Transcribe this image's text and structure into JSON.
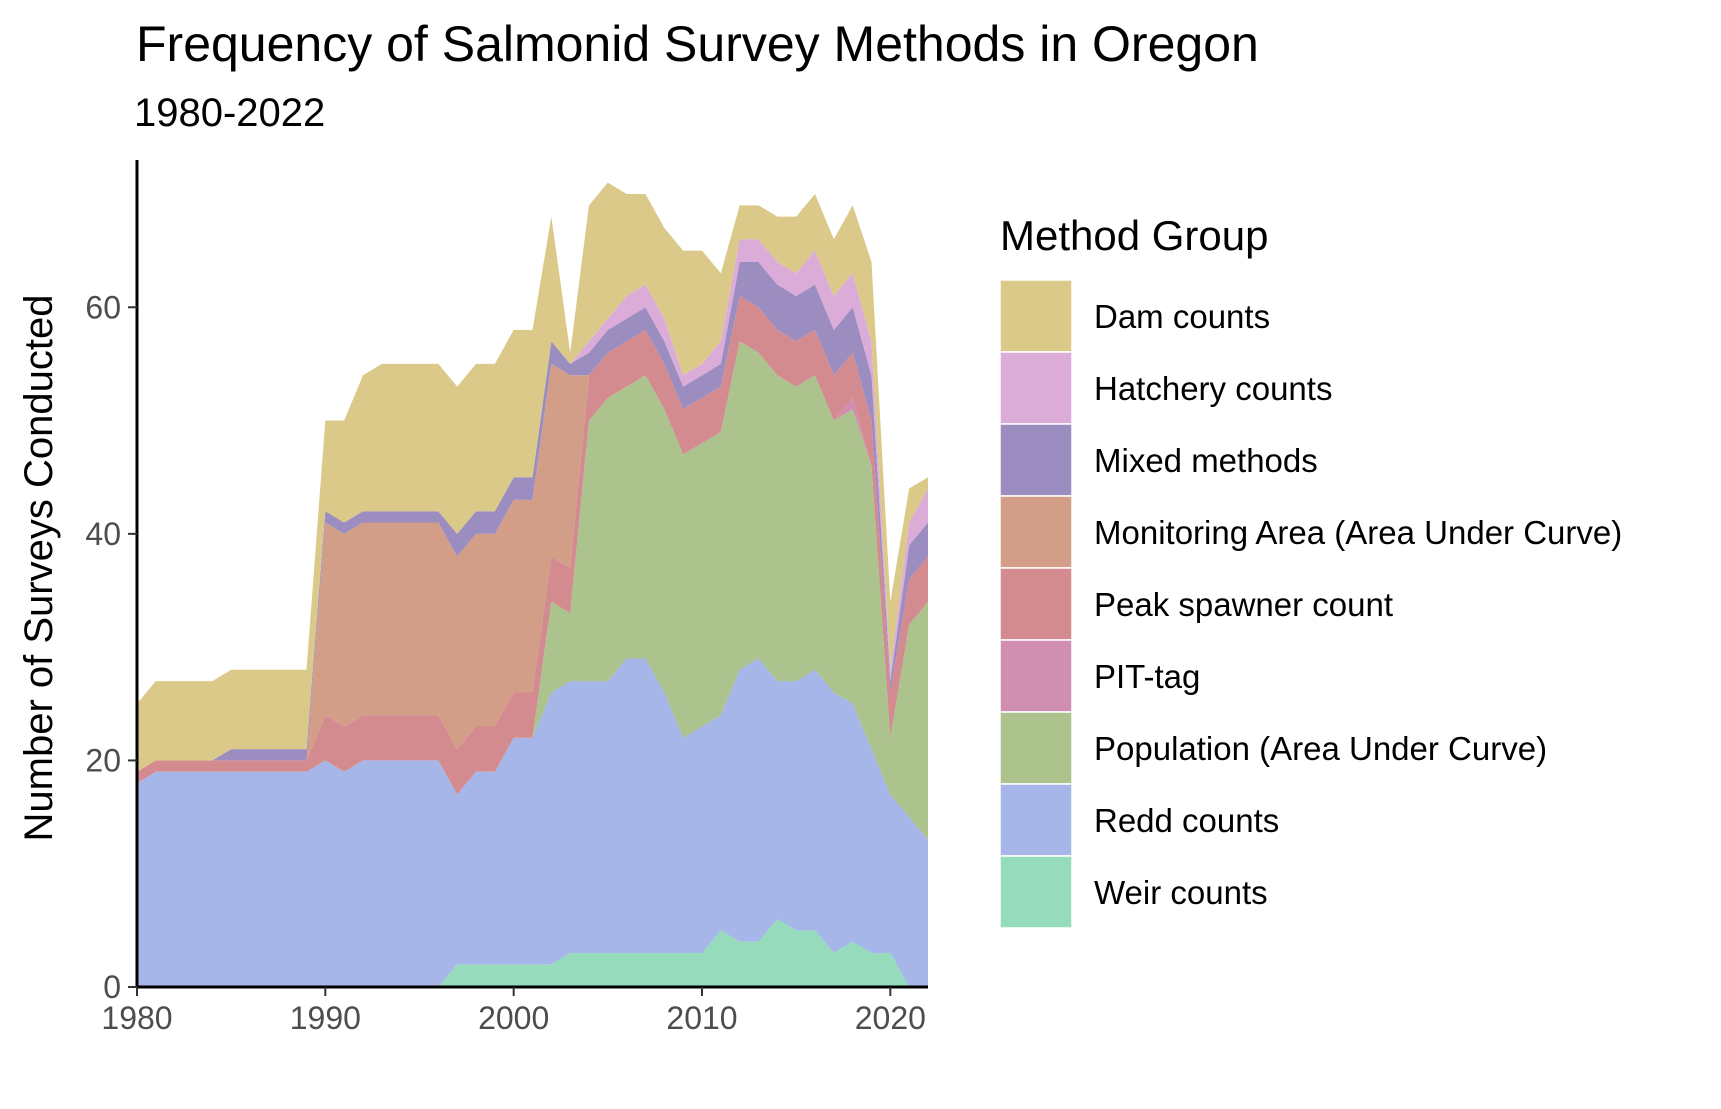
{
  "chart_data": {
    "type": "area",
    "stacked": true,
    "title": "Frequency of Salmonid Survey Methods in Oregon",
    "subtitle": "1980-2022",
    "xlabel": "",
    "ylabel": "Number of Surveys Conducted",
    "xlim": [
      1980,
      2022
    ],
    "ylim": [
      0,
      73
    ],
    "x_ticks": [
      1980,
      1990,
      2000,
      2010,
      2020
    ],
    "y_ticks": [
      0,
      20,
      40,
      60
    ],
    "grid": false,
    "legend": {
      "title": "Method Group",
      "position": "right"
    },
    "x": [
      1980,
      1981,
      1982,
      1983,
      1984,
      1985,
      1986,
      1987,
      1988,
      1989,
      1990,
      1991,
      1992,
      1993,
      1994,
      1995,
      1996,
      1997,
      1998,
      1999,
      2000,
      2001,
      2002,
      2003,
      2004,
      2005,
      2006,
      2007,
      2008,
      2009,
      2010,
      2011,
      2012,
      2013,
      2014,
      2015,
      2016,
      2017,
      2018,
      2019,
      2020,
      2021,
      2022
    ],
    "series": [
      {
        "name": "Weir counts",
        "color": "#96dcbc",
        "values": [
          0,
          0,
          0,
          0,
          0,
          0,
          0,
          0,
          0,
          0,
          0,
          0,
          0,
          0,
          0,
          0,
          0,
          2,
          2,
          2,
          2,
          2,
          2,
          3,
          3,
          3,
          3,
          3,
          3,
          3,
          3,
          5,
          4,
          4,
          6,
          5,
          5,
          3,
          4,
          3,
          3,
          0,
          0
        ]
      },
      {
        "name": "Redd counts",
        "color": "#a7b6e8",
        "values": [
          18,
          19,
          19,
          19,
          19,
          19,
          19,
          19,
          19,
          19,
          20,
          19,
          20,
          20,
          20,
          20,
          20,
          15,
          17,
          17,
          20,
          20,
          24,
          24,
          24,
          24,
          26,
          26,
          23,
          19,
          20,
          19,
          24,
          25,
          21,
          22,
          23,
          23,
          21,
          18,
          14,
          15,
          13
        ]
      },
      {
        "name": "Population (Area Under Curve)",
        "color": "#acc38e",
        "values": [
          0,
          0,
          0,
          0,
          0,
          0,
          0,
          0,
          0,
          0,
          0,
          0,
          0,
          0,
          0,
          0,
          0,
          0,
          0,
          0,
          0,
          0,
          8,
          6,
          23,
          25,
          24,
          25,
          25,
          25,
          25,
          25,
          29,
          27,
          27,
          26,
          26,
          24,
          26,
          25,
          5,
          17,
          21
        ]
      },
      {
        "name": "PIT-tag",
        "color": "#d08fb0",
        "values": [
          0,
          0,
          0,
          0,
          0,
          0,
          0,
          0,
          0,
          0,
          0,
          0,
          0,
          0,
          0,
          0,
          0,
          0,
          0,
          0,
          0,
          0,
          0,
          0,
          0,
          0,
          0,
          0,
          0,
          0,
          0,
          0,
          0,
          0,
          0,
          0,
          0,
          0,
          1,
          0,
          0,
          0,
          0
        ]
      },
      {
        "name": "Peak spawner count",
        "color": "#d38b8f",
        "values": [
          1,
          1,
          1,
          1,
          1,
          1,
          1,
          1,
          1,
          1,
          4,
          4,
          4,
          4,
          4,
          4,
          4,
          4,
          4,
          4,
          4,
          4,
          4,
          4,
          4,
          4,
          4,
          4,
          4,
          4,
          4,
          4,
          4,
          4,
          4,
          4,
          4,
          4,
          4,
          4,
          4,
          4,
          4
        ]
      },
      {
        "name": "Monitoring Area (Area Under Curve)",
        "color": "#d39e88",
        "values": [
          0,
          0,
          0,
          0,
          0,
          0,
          0,
          0,
          0,
          0,
          17,
          17,
          17,
          17,
          17,
          17,
          17,
          17,
          17,
          17,
          17,
          17,
          17,
          17,
          0,
          0,
          0,
          0,
          0,
          0,
          0,
          0,
          0,
          0,
          0,
          0,
          0,
          0,
          0,
          0,
          0,
          0,
          0
        ]
      },
      {
        "name": "Mixed methods",
        "color": "#9c8dc1",
        "values": [
          0,
          0,
          0,
          0,
          0,
          1,
          1,
          1,
          1,
          1,
          1,
          1,
          1,
          1,
          1,
          1,
          1,
          2,
          2,
          2,
          2,
          2,
          2,
          1,
          2,
          2,
          2,
          2,
          2,
          2,
          2,
          2,
          3,
          4,
          4,
          4,
          4,
          4,
          4,
          4,
          1,
          3,
          3
        ]
      },
      {
        "name": "Hatchery counts",
        "color": "#dcacd9",
        "values": [
          0,
          0,
          0,
          0,
          0,
          0,
          0,
          0,
          0,
          0,
          0,
          0,
          0,
          0,
          0,
          0,
          0,
          0,
          0,
          0,
          0,
          0,
          0,
          0,
          1,
          1,
          2,
          2,
          2,
          1,
          1,
          2,
          2,
          2,
          2,
          2,
          3,
          3,
          3,
          3,
          1,
          2,
          3
        ]
      },
      {
        "name": "Dam counts",
        "color": "#dbc989",
        "values": [
          6,
          7,
          7,
          7,
          7,
          7,
          7,
          7,
          7,
          7,
          8,
          9,
          12,
          13,
          13,
          13,
          13,
          13,
          13,
          13,
          13,
          13,
          11,
          1,
          12,
          12,
          9,
          8,
          8,
          11,
          10,
          6,
          3,
          3,
          4,
          5,
          5,
          5,
          6,
          7,
          6,
          3,
          1
        ]
      }
    ],
    "legend_order": [
      "Dam counts",
      "Hatchery counts",
      "Mixed methods",
      "Monitoring Area (Area Under Curve)",
      "Peak spawner count",
      "PIT-tag",
      "Population (Area Under Curve)",
      "Redd counts",
      "Weir counts"
    ]
  }
}
